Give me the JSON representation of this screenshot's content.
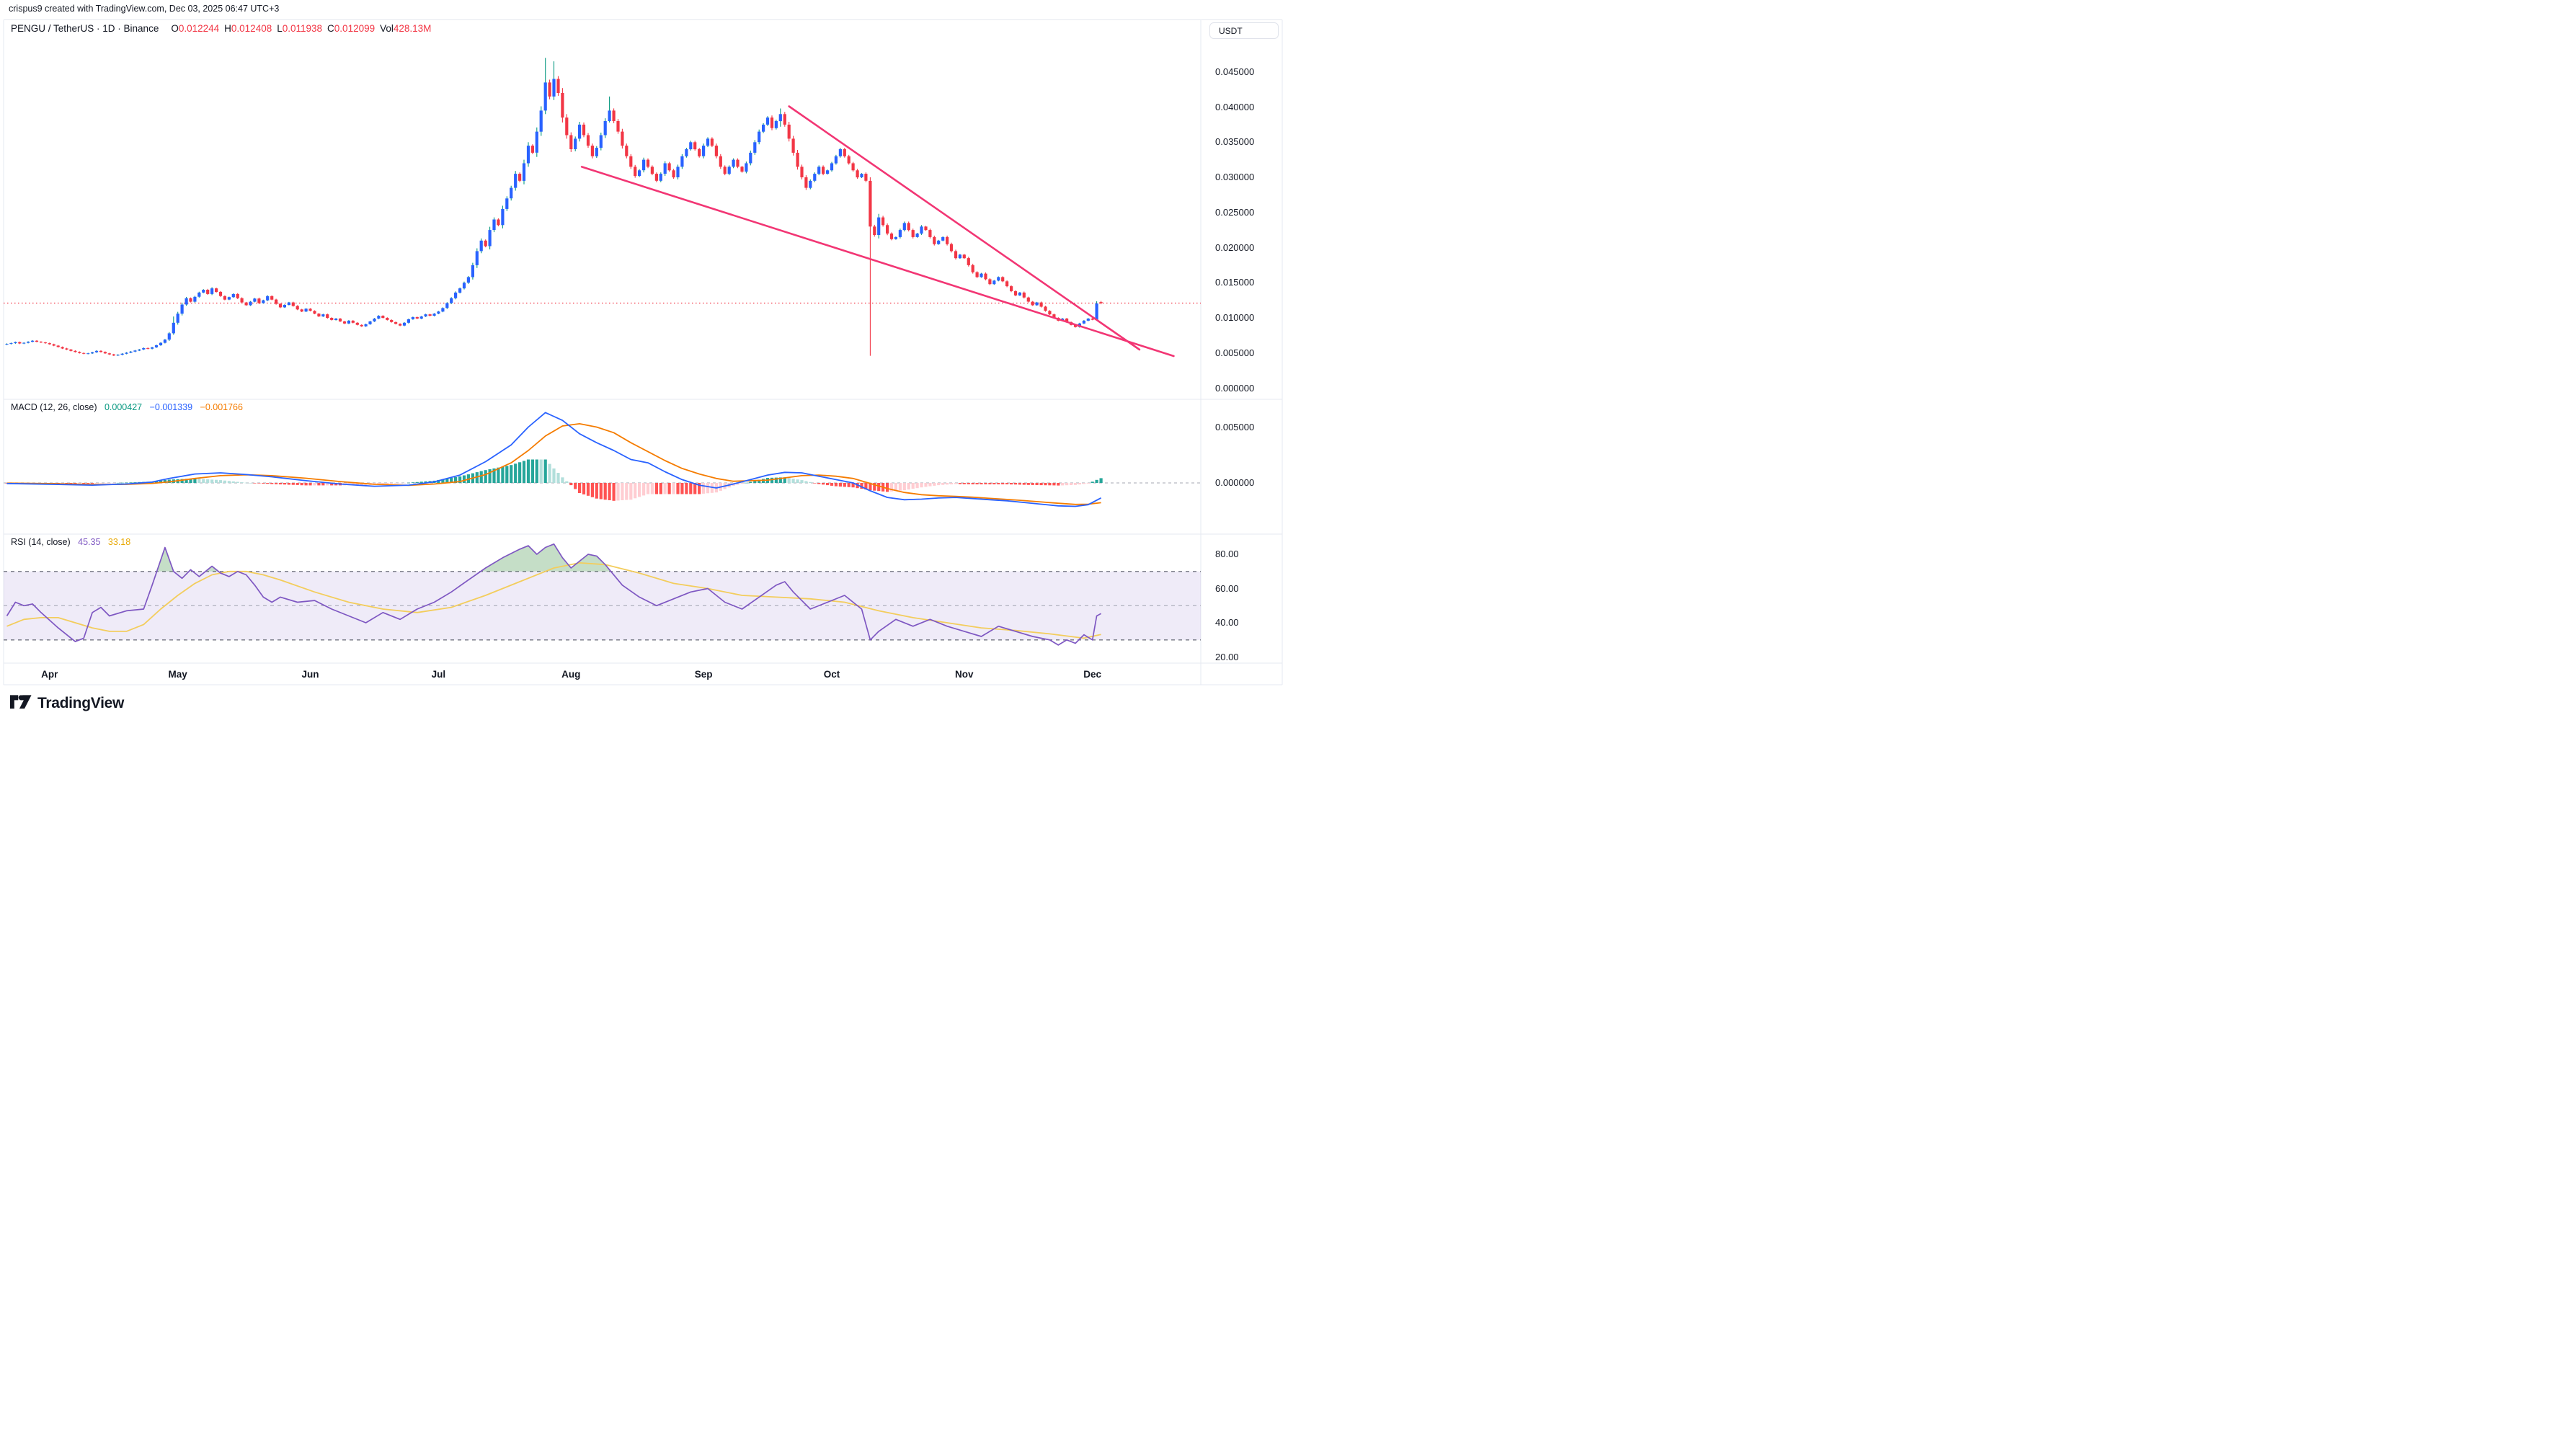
{
  "attribution": "crispus9 created with TradingView.com, Dec 03, 2025 06:47 UTC+3",
  "header": {
    "symbol": "PENGU / TetherUS · 1D · Binance",
    "ohlc": [
      {
        "l": "O",
        "v": "0.012244"
      },
      {
        "l": "H",
        "v": "0.012408"
      },
      {
        "l": "L",
        "v": "0.011938"
      },
      {
        "l": "C",
        "v": "0.012099"
      }
    ],
    "vol_label": "Vol",
    "vol_value": "428.13M"
  },
  "axis": {
    "currency": "USDT"
  },
  "macd_pane": {
    "title": "MACD (12, 26, close)",
    "hist_value": "0.000427",
    "macd_value": "−0.001339",
    "signal_value": "−0.001766"
  },
  "rsi_pane": {
    "title": "RSI (14, close)",
    "value": "45.35",
    "ma_value": "33.18"
  },
  "footer": {
    "brand": "TradingView"
  },
  "colors": {
    "up_body": "#2962FF",
    "up_wick": "#089981",
    "down": "#F23645",
    "macd_line": "#2962FF",
    "signal_line": "#F57C00",
    "hist_pos": "#26A69A",
    "hist_pos_weak": "#B2DFDB",
    "hist_neg": "#FF5252",
    "hist_neg_weak": "#FFCDD2",
    "rsi_line": "#7E57C2",
    "rsi_ma_line": "#F3CD5C",
    "rsi_value": "#7E57C2",
    "rsi_ma_value": "#E8A906",
    "hist_value": "#089981",
    "band_fill": "rgba(126,87,194,0.12)",
    "overbought_fill": "rgba(76,153,80,0.32)",
    "trend": "#F23674",
    "last_price": "#F23645",
    "text": "#131722",
    "frame": "#E6E9F0"
  },
  "chart_data": {
    "type": "candlestick",
    "title": "PENGU / TetherUS daily with MACD and RSI",
    "price_unit": 0.001,
    "start_date": "2025-03-22",
    "end_date": "2025-12-03",
    "closes": [
      6.3,
      6.4,
      6.55,
      6.35,
      6.45,
      6.6,
      6.75,
      6.6,
      6.5,
      6.4,
      6.25,
      6.05,
      5.85,
      5.65,
      5.5,
      5.3,
      5.15,
      5.0,
      4.9,
      4.95,
      5.1,
      5.3,
      5.15,
      4.95,
      4.8,
      4.65,
      4.75,
      4.9,
      5.05,
      5.2,
      5.35,
      5.5,
      5.7,
      5.6,
      5.8,
      6.1,
      6.45,
      6.9,
      7.8,
      9.3,
      10.6,
      11.9,
      12.8,
      12.3,
      13.0,
      13.6,
      14.0,
      13.4,
      14.2,
      13.7,
      13.1,
      12.6,
      12.95,
      13.4,
      12.8,
      12.2,
      11.8,
      12.3,
      12.75,
      12.1,
      12.5,
      13.1,
      12.6,
      12.0,
      11.5,
      11.85,
      12.2,
      11.7,
      11.2,
      10.9,
      11.3,
      11.0,
      10.6,
      10.2,
      10.5,
      10.0,
      9.7,
      9.9,
      9.5,
      9.2,
      9.6,
      9.3,
      9.0,
      8.8,
      9.1,
      9.5,
      9.9,
      10.3,
      10.0,
      9.7,
      9.4,
      9.15,
      8.9,
      9.3,
      9.8,
      10.1,
      9.9,
      10.2,
      10.5,
      10.3,
      10.6,
      10.9,
      11.4,
      12.1,
      12.8,
      13.6,
      14.2,
      15.0,
      15.8,
      17.5,
      19.5,
      21.0,
      20.2,
      22.5,
      24.0,
      23.2,
      25.5,
      27.0,
      28.5,
      30.5,
      29.5,
      32.0,
      34.5,
      33.5,
      36.5,
      39.5,
      43.5,
      41.5,
      44.0,
      42.0,
      38.5,
      36.0,
      34.0,
      35.5,
      37.5,
      36.0,
      34.5,
      33.0,
      34.2,
      36.0,
      38.0,
      39.5,
      38.0,
      36.5,
      34.5,
      33.0,
      31.5,
      30.2,
      31.0,
      32.5,
      31.5,
      30.5,
      29.5,
      30.5,
      32.0,
      31.0,
      30.0,
      31.5,
      33.0,
      34.0,
      35.0,
      34.0,
      33.0,
      34.5,
      35.5,
      34.5,
      33.0,
      31.5,
      30.5,
      31.5,
      32.5,
      31.5,
      30.8,
      32.0,
      33.5,
      35.0,
      36.5,
      37.5,
      38.5,
      37.0,
      38.0,
      39.0,
      37.5,
      35.5,
      33.5,
      31.5,
      30.0,
      28.5,
      29.5,
      30.5,
      31.5,
      30.5,
      31.0,
      32.0,
      33.0,
      34.0,
      33.0,
      32.0,
      31.0,
      30.0,
      30.5,
      29.5,
      23.0,
      21.8,
      24.3,
      23.2,
      22.0,
      21.2,
      21.5,
      22.5,
      23.5,
      22.5,
      21.5,
      22.0,
      23.0,
      22.5,
      21.5,
      20.5,
      21.0,
      21.5,
      20.5,
      19.5,
      18.5,
      19.0,
      18.5,
      17.5,
      16.5,
      15.8,
      16.3,
      15.5,
      14.8,
      15.3,
      15.8,
      15.2,
      14.5,
      13.8,
      13.2,
      13.6,
      12.9,
      12.3,
      11.8,
      12.2,
      11.6,
      11.0,
      10.5,
      10.0,
      9.6,
      9.9,
      9.4,
      9.0,
      8.7,
      9.2,
      9.6,
      9.9,
      9.74,
      12.05,
      12.099
    ],
    "open_overrides": {
      "0": 6.2,
      "256": 12.244
    },
    "wick_overrides": {
      "39": [
        10.2,
        7.6
      ],
      "126": [
        47.0,
        39.0
      ],
      "128": [
        46.5,
        41.0
      ],
      "141": [
        41.5,
        37.8
      ],
      "181": [
        39.8,
        37.2
      ],
      "202": [
        30.0,
        4.6
      ],
      "255": [
        12.37,
        9.64
      ],
      "256": [
        12.408,
        11.938
      ]
    },
    "last_price": 0.012099,
    "price_ticks": [
      {
        "label": "0.045000",
        "value": 0.045
      },
      {
        "label": "0.040000",
        "value": 0.04
      },
      {
        "label": "0.035000",
        "value": 0.035
      },
      {
        "label": "0.030000",
        "value": 0.03
      },
      {
        "label": "0.025000",
        "value": 0.025
      },
      {
        "label": "0.020000",
        "value": 0.02
      },
      {
        "label": "0.015000",
        "value": 0.015
      },
      {
        "label": "0.010000",
        "value": 0.01
      },
      {
        "label": "0.005000",
        "value": 0.005
      },
      {
        "label": "0.000000",
        "value": 0.0
      }
    ],
    "months": [
      {
        "label": "Apr",
        "i": 10
      },
      {
        "label": "May",
        "i": 40
      },
      {
        "label": "Jun",
        "i": 71
      },
      {
        "label": "Jul",
        "i": 101
      },
      {
        "label": "Aug",
        "i": 132
      },
      {
        "label": "Sep",
        "i": 163
      },
      {
        "label": "Oct",
        "i": 193
      },
      {
        "label": "Nov",
        "i": 224
      },
      {
        "label": "Dec",
        "i": 254
      }
    ],
    "trendlines": [
      {
        "i1": 183,
        "p1": 0.0401,
        "i2": 265,
        "p2": 0.00549
      },
      {
        "i1": 134.5,
        "p1": 0.0315,
        "i2": 273,
        "p2": 0.00456
      }
    ],
    "macd": {
      "params": [
        12,
        26,
        "close"
      ],
      "unit": 0.001,
      "ticks": [
        {
          "label": "0.005000",
          "value": 0.005
        },
        {
          "label": "0.000000",
          "value": 0.0
        }
      ],
      "macd_points": [
        [
          0,
          -0.05
        ],
        [
          10,
          -0.12
        ],
        [
          20,
          -0.2
        ],
        [
          28,
          -0.1
        ],
        [
          34,
          0.08
        ],
        [
          38,
          0.4
        ],
        [
          44,
          0.8
        ],
        [
          50,
          0.9
        ],
        [
          56,
          0.75
        ],
        [
          62,
          0.55
        ],
        [
          70,
          0.2
        ],
        [
          78,
          -0.1
        ],
        [
          86,
          -0.3
        ],
        [
          94,
          -0.2
        ],
        [
          100,
          0.1
        ],
        [
          106,
          0.7
        ],
        [
          112,
          1.9
        ],
        [
          118,
          3.4
        ],
        [
          122,
          5.0
        ],
        [
          126,
          6.3
        ],
        [
          130,
          5.6
        ],
        [
          134,
          4.4
        ],
        [
          138,
          3.6
        ],
        [
          142,
          2.9
        ],
        [
          146,
          2.1
        ],
        [
          150,
          1.8
        ],
        [
          154,
          1.0
        ],
        [
          158,
          0.3
        ],
        [
          162,
          -0.2
        ],
        [
          166,
          -0.45
        ],
        [
          170,
          -0.1
        ],
        [
          174,
          0.3
        ],
        [
          178,
          0.7
        ],
        [
          182,
          0.95
        ],
        [
          186,
          0.9
        ],
        [
          190,
          0.6
        ],
        [
          194,
          0.3
        ],
        [
          198,
          0.0
        ],
        [
          202,
          -0.7
        ],
        [
          206,
          -1.3
        ],
        [
          210,
          -1.5
        ],
        [
          214,
          -1.45
        ],
        [
          218,
          -1.35
        ],
        [
          222,
          -1.3
        ],
        [
          226,
          -1.4
        ],
        [
          230,
          -1.5
        ],
        [
          234,
          -1.6
        ],
        [
          238,
          -1.75
        ],
        [
          242,
          -1.9
        ],
        [
          246,
          -2.05
        ],
        [
          250,
          -2.1
        ],
        [
          253,
          -1.95
        ],
        [
          256,
          -1.339
        ]
      ],
      "signal_points": [
        [
          0,
          -0.02
        ],
        [
          10,
          -0.06
        ],
        [
          20,
          -0.14
        ],
        [
          28,
          -0.13
        ],
        [
          34,
          -0.04
        ],
        [
          38,
          0.1
        ],
        [
          44,
          0.4
        ],
        [
          50,
          0.65
        ],
        [
          56,
          0.73
        ],
        [
          62,
          0.65
        ],
        [
          70,
          0.42
        ],
        [
          78,
          0.12
        ],
        [
          86,
          -0.12
        ],
        [
          94,
          -0.22
        ],
        [
          100,
          -0.1
        ],
        [
          106,
          0.12
        ],
        [
          112,
          0.75
        ],
        [
          118,
          1.8
        ],
        [
          122,
          2.9
        ],
        [
          126,
          4.2
        ],
        [
          130,
          5.1
        ],
        [
          134,
          5.3
        ],
        [
          138,
          5.0
        ],
        [
          142,
          4.5
        ],
        [
          146,
          3.6
        ],
        [
          150,
          2.8
        ],
        [
          154,
          2.0
        ],
        [
          158,
          1.3
        ],
        [
          162,
          0.8
        ],
        [
          166,
          0.4
        ],
        [
          170,
          0.15
        ],
        [
          174,
          0.2
        ],
        [
          178,
          0.25
        ],
        [
          182,
          0.45
        ],
        [
          186,
          0.65
        ],
        [
          190,
          0.7
        ],
        [
          194,
          0.6
        ],
        [
          198,
          0.4
        ],
        [
          202,
          -0.05
        ],
        [
          206,
          -0.5
        ],
        [
          210,
          -0.85
        ],
        [
          214,
          -1.05
        ],
        [
          218,
          -1.15
        ],
        [
          222,
          -1.2
        ],
        [
          226,
          -1.28
        ],
        [
          230,
          -1.38
        ],
        [
          234,
          -1.48
        ],
        [
          238,
          -1.58
        ],
        [
          242,
          -1.7
        ],
        [
          246,
          -1.82
        ],
        [
          250,
          -1.92
        ],
        [
          253,
          -1.9
        ],
        [
          256,
          -1.766
        ]
      ]
    },
    "rsi": {
      "params": [
        14,
        "close"
      ],
      "levels": [
        70,
        50,
        30
      ],
      "ticks": [
        {
          "label": "80.00",
          "value": 80
        },
        {
          "label": "60.00",
          "value": 60
        },
        {
          "label": "40.00",
          "value": 40
        },
        {
          "label": "20.00",
          "value": 20
        }
      ],
      "rsi_points": [
        [
          0,
          44
        ],
        [
          2,
          52
        ],
        [
          4,
          50
        ],
        [
          6,
          51
        ],
        [
          8,
          46
        ],
        [
          12,
          37
        ],
        [
          16,
          29
        ],
        [
          18,
          31
        ],
        [
          20,
          46
        ],
        [
          22,
          49
        ],
        [
          24,
          44
        ],
        [
          28,
          47
        ],
        [
          32,
          48
        ],
        [
          34,
          62
        ],
        [
          37,
          84
        ],
        [
          39,
          70
        ],
        [
          41,
          66
        ],
        [
          43,
          71
        ],
        [
          45,
          67
        ],
        [
          48,
          73
        ],
        [
          50,
          69
        ],
        [
          52,
          67
        ],
        [
          54,
          70
        ],
        [
          56,
          68
        ],
        [
          58,
          62
        ],
        [
          60,
          55
        ],
        [
          62,
          52
        ],
        [
          64,
          55
        ],
        [
          68,
          52
        ],
        [
          72,
          53
        ],
        [
          76,
          48
        ],
        [
          80,
          44
        ],
        [
          84,
          40
        ],
        [
          88,
          46
        ],
        [
          92,
          42
        ],
        [
          96,
          48
        ],
        [
          100,
          52
        ],
        [
          104,
          58
        ],
        [
          108,
          65
        ],
        [
          112,
          72
        ],
        [
          116,
          78
        ],
        [
          120,
          83
        ],
        [
          122,
          85
        ],
        [
          124,
          80
        ],
        [
          126,
          84
        ],
        [
          128,
          86
        ],
        [
          130,
          78
        ],
        [
          132,
          72
        ],
        [
          134,
          76
        ],
        [
          136,
          80
        ],
        [
          138,
          79
        ],
        [
          140,
          74
        ],
        [
          144,
          62
        ],
        [
          148,
          55
        ],
        [
          152,
          50
        ],
        [
          156,
          54
        ],
        [
          160,
          58
        ],
        [
          164,
          60
        ],
        [
          168,
          52
        ],
        [
          172,
          48
        ],
        [
          176,
          55
        ],
        [
          180,
          62
        ],
        [
          182,
          64
        ],
        [
          184,
          58
        ],
        [
          188,
          48
        ],
        [
          192,
          52
        ],
        [
          196,
          56
        ],
        [
          200,
          48
        ],
        [
          202,
          30
        ],
        [
          204,
          35
        ],
        [
          208,
          42
        ],
        [
          212,
          38
        ],
        [
          216,
          42
        ],
        [
          220,
          38
        ],
        [
          224,
          35
        ],
        [
          228,
          32
        ],
        [
          232,
          38
        ],
        [
          236,
          35
        ],
        [
          240,
          32
        ],
        [
          244,
          30
        ],
        [
          246,
          27
        ],
        [
          248,
          30
        ],
        [
          250,
          28
        ],
        [
          252,
          33
        ],
        [
          254,
          30
        ],
        [
          255,
          44
        ],
        [
          256,
          45.35
        ]
      ],
      "ma_points": [
        [
          0,
          38
        ],
        [
          4,
          42
        ],
        [
          8,
          43
        ],
        [
          12,
          43
        ],
        [
          16,
          40
        ],
        [
          20,
          37
        ],
        [
          24,
          35
        ],
        [
          28,
          35
        ],
        [
          32,
          39
        ],
        [
          36,
          48
        ],
        [
          40,
          56
        ],
        [
          44,
          63
        ],
        [
          48,
          68
        ],
        [
          52,
          70
        ],
        [
          56,
          70
        ],
        [
          60,
          68
        ],
        [
          64,
          65
        ],
        [
          72,
          58
        ],
        [
          80,
          52
        ],
        [
          88,
          48
        ],
        [
          96,
          46
        ],
        [
          104,
          49
        ],
        [
          112,
          56
        ],
        [
          120,
          64
        ],
        [
          128,
          72
        ],
        [
          134,
          75
        ],
        [
          140,
          74
        ],
        [
          148,
          69
        ],
        [
          156,
          63
        ],
        [
          164,
          60
        ],
        [
          172,
          56
        ],
        [
          180,
          55
        ],
        [
          188,
          54
        ],
        [
          196,
          52
        ],
        [
          204,
          47
        ],
        [
          212,
          43
        ],
        [
          220,
          40
        ],
        [
          228,
          37
        ],
        [
          236,
          35.5
        ],
        [
          244,
          33.5
        ],
        [
          252,
          31
        ],
        [
          256,
          33.18
        ]
      ]
    }
  }
}
